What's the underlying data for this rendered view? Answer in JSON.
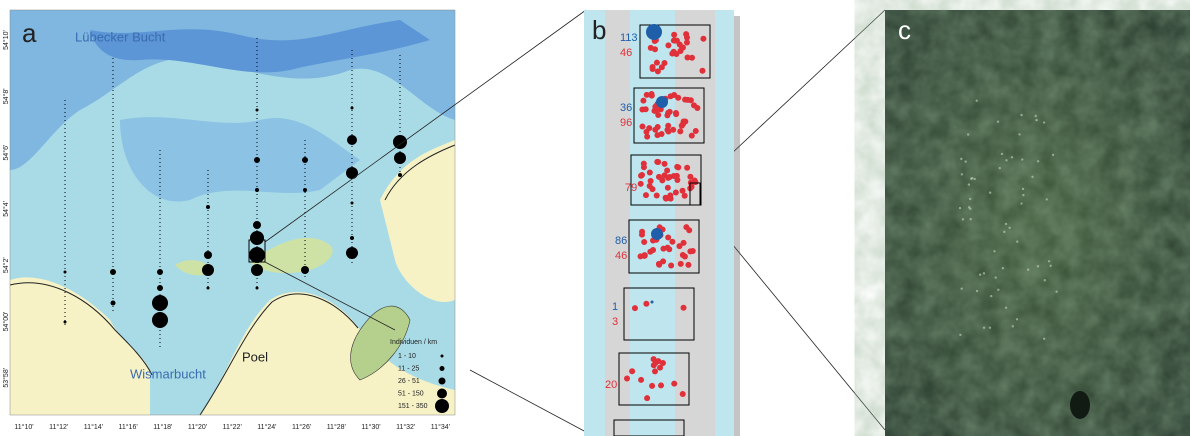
{
  "panel_a": {
    "label": "a",
    "places": [
      "Lübecker Bucht",
      "Wismarbucht",
      "Poel"
    ],
    "legend": {
      "title": "Individuen / km",
      "entries": [
        "1 - 10",
        "11 - 25",
        "26 - 51",
        "51 - 150",
        "151 - 350"
      ]
    },
    "x_ticks": [
      "11°10'",
      "11°12'",
      "11°14'",
      "11°16'",
      "11°18'",
      "11°20'",
      "11°22'",
      "11°24'",
      "11°26'",
      "11°28'",
      "11°30'",
      "11°32'",
      "11°34'"
    ],
    "y_ticks": [
      "54°10'",
      "54°8'",
      "54°6'",
      "54°4'",
      "54°2'",
      "54°00'",
      "53°58'"
    ]
  },
  "panel_b": {
    "label": "b",
    "boxes": [
      {
        "blue": "113",
        "red": "46"
      },
      {
        "blue": "36",
        "red": "96"
      },
      {
        "red": "79"
      },
      {
        "blue": "86",
        "red": "46"
      },
      {
        "blue": "1",
        "red": "3"
      },
      {
        "red": "20"
      }
    ]
  },
  "panel_c": {
    "label": "c"
  }
}
